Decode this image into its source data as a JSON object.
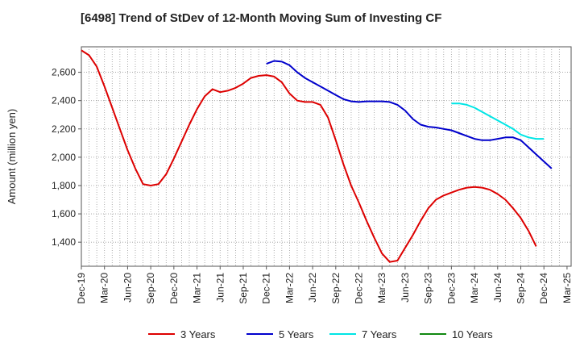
{
  "chart_data": {
    "type": "line",
    "title": "[6498]  Trend of StDev of 12-Month Moving Sum of Investing CF",
    "ylabel": "Amount (million yen)",
    "xlabel": "",
    "ylim": [
      1230,
      2780
    ],
    "yticks": [
      1400,
      1600,
      1800,
      2000,
      2200,
      2400,
      2600
    ],
    "ytick_labels": [
      "1,400",
      "1,600",
      "1,800",
      "2,000",
      "2,200",
      "2,400",
      "2,600"
    ],
    "xtick_labels": [
      "Dec-19",
      "Mar-20",
      "Jun-20",
      "Sep-20",
      "Dec-20",
      "Mar-21",
      "Jun-21",
      "Sep-21",
      "Dec-21",
      "Mar-22",
      "Jun-22",
      "Sep-22",
      "Dec-22",
      "Mar-23",
      "Jun-23",
      "Sep-23",
      "Dec-23",
      "Mar-24",
      "Jun-24",
      "Sep-24",
      "Dec-24",
      "Mar-25"
    ],
    "grid": true,
    "legend_position": "bottom",
    "series": [
      {
        "name": "3 Years",
        "color": "#dd0000",
        "start_month": 0,
        "values": [
          2755,
          2720,
          2640,
          2500,
          2350,
          2200,
          2050,
          1920,
          1810,
          1800,
          1810,
          1880,
          1990,
          2110,
          2230,
          2340,
          2430,
          2480,
          2460,
          2470,
          2490,
          2520,
          2560,
          2575,
          2580,
          2570,
          2530,
          2450,
          2400,
          2390,
          2390,
          2370,
          2280,
          2120,
          1950,
          1800,
          1680,
          1550,
          1430,
          1320,
          1260,
          1270,
          1360,
          1450,
          1550,
          1640,
          1700,
          1730,
          1750,
          1770,
          1785,
          1790,
          1785,
          1770,
          1740,
          1700,
          1640,
          1570,
          1480,
          1370
        ]
      },
      {
        "name": "5 Years",
        "color": "#0000cc",
        "start_month": 24,
        "values": [
          2660,
          2680,
          2675,
          2650,
          2600,
          2560,
          2530,
          2500,
          2470,
          2440,
          2410,
          2395,
          2390,
          2395,
          2395,
          2395,
          2390,
          2370,
          2330,
          2270,
          2230,
          2215,
          2210,
          2200,
          2190,
          2170,
          2150,
          2130,
          2120,
          2120,
          2130,
          2140,
          2140,
          2120,
          2070,
          2020,
          1970,
          1920
        ]
      },
      {
        "name": "7 Years",
        "color": "#00e5e5",
        "start_month": 48,
        "values": [
          2380,
          2380,
          2370,
          2350,
          2320,
          2290,
          2260,
          2230,
          2200,
          2160,
          2140,
          2130,
          2130
        ]
      },
      {
        "name": "10 Years",
        "color": "#118811",
        "start_month": 0,
        "values": []
      }
    ]
  }
}
